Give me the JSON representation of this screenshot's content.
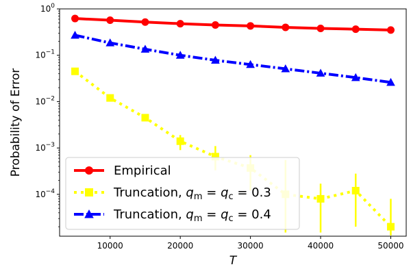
{
  "chart_data": {
    "type": "line",
    "xlabel": "T",
    "ylabel": "Probability of Error",
    "yscale": "log",
    "xlim": [
      2800,
      52200
    ],
    "ylim": [
      1.25e-05,
      1
    ],
    "xticks": [
      10000,
      20000,
      30000,
      40000,
      50000
    ],
    "yticks": [
      {
        "value": 0.0001,
        "base": "10",
        "exp": "−4"
      },
      {
        "value": 0.001,
        "base": "10",
        "exp": "−3"
      },
      {
        "value": 0.01,
        "base": "10",
        "exp": "−2"
      },
      {
        "value": 0.1,
        "base": "10",
        "exp": "−1"
      },
      {
        "value": 1,
        "base": "10",
        "exp": "0"
      }
    ],
    "grid": false,
    "legend_position": "lower-left",
    "x": [
      5000,
      10000,
      15000,
      20000,
      25000,
      30000,
      35000,
      40000,
      45000,
      50000
    ],
    "series": [
      {
        "name": "Empirical",
        "legend_parts": [
          {
            "t": "Empirical"
          }
        ],
        "color": "#ff0000",
        "marker": "circle",
        "dash": "",
        "values": [
          0.62,
          0.57,
          0.52,
          0.48,
          0.45,
          0.43,
          0.4,
          0.38,
          0.365,
          0.35
        ],
        "err_low": null,
        "err_high": null
      },
      {
        "name": "Truncation, q_m = q_c = 0.3",
        "legend_parts": [
          {
            "t": "Truncation, "
          },
          {
            "t": "q",
            "i": true
          },
          {
            "t": "m",
            "sub": true
          },
          {
            "t": " = "
          },
          {
            "t": "q",
            "i": true
          },
          {
            "t": "c",
            "sub": true
          },
          {
            "t": " = 0.3"
          }
        ],
        "color": "#ffff00",
        "marker": "square",
        "dash": "4,6",
        "values": [
          0.045,
          0.012,
          0.0045,
          0.0014,
          0.00065,
          0.00037,
          0.0001,
          8e-05,
          0.00012,
          2e-05
        ],
        "err_low": [
          0.04,
          0.0105,
          0.0038,
          0.0009,
          0.00033,
          0.00012,
          1.5e-05,
          1.5e-05,
          2e-05,
          1.3e-05
        ],
        "err_high": [
          0.05,
          0.014,
          0.0052,
          0.0019,
          0.0011,
          0.0007,
          0.00055,
          0.00017,
          0.00028,
          8e-05
        ]
      },
      {
        "name": "Truncation, q_m = q_c = 0.4",
        "legend_parts": [
          {
            "t": "Truncation, "
          },
          {
            "t": "q",
            "i": true
          },
          {
            "t": "m",
            "sub": true
          },
          {
            "t": " = "
          },
          {
            "t": "q",
            "i": true
          },
          {
            "t": "c",
            "sub": true
          },
          {
            "t": " = 0.4"
          }
        ],
        "color": "#0000ff",
        "marker": "triangle",
        "dash": "14,4,3,4",
        "values": [
          0.27,
          0.185,
          0.135,
          0.1,
          0.078,
          0.063,
          0.051,
          0.041,
          0.033,
          0.026
        ],
        "err_low": null,
        "err_high": null
      }
    ]
  }
}
